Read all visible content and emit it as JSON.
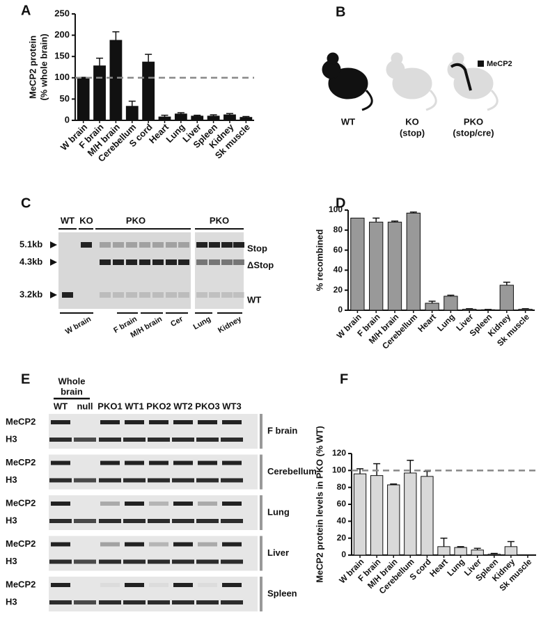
{
  "chart_data": [
    {
      "type": "bar",
      "label": "A",
      "ylabel": [
        "MeCP2 protein",
        "(% whole brain)"
      ],
      "categories": [
        "W brain",
        "F brain",
        "M/H brain",
        "Cerebellum",
        "S cord",
        "Heart",
        "Lung",
        "Liver",
        "Spleen",
        "Kidney",
        "Sk muscle"
      ],
      "values": [
        100,
        128,
        188,
        33,
        137,
        8,
        15,
        10,
        10,
        13,
        7
      ],
      "errors": [
        1,
        18,
        20,
        12,
        18,
        4,
        3,
        2,
        3,
        3,
        2
      ],
      "color": "#111111",
      "ylim": [
        0,
        250
      ],
      "yticks": [
        0,
        50,
        100,
        150,
        200,
        250
      ],
      "reference_line": 100
    },
    {
      "type": "bar",
      "label": "D",
      "ylabel": [
        "% recombined"
      ],
      "categories": [
        "W brain",
        "F brain",
        "M/H brain",
        "Cerebellum",
        "Heart",
        "Lung",
        "Liver",
        "Spleen",
        "Kidney",
        "Sk muscle"
      ],
      "values": [
        92,
        88,
        88,
        97,
        7,
        14,
        1,
        0.5,
        25,
        1
      ],
      "errors": [
        0,
        4,
        1,
        1,
        2,
        1,
        0.5,
        0.3,
        3,
        0.5
      ],
      "color": "#999999",
      "ylim": [
        0,
        100
      ],
      "yticks": [
        0,
        20,
        40,
        60,
        80,
        100
      ]
    },
    {
      "type": "bar",
      "label": "F",
      "ylabel": [
        "MeCP2 protein levels in PKO (% WT)"
      ],
      "categories": [
        "W brain",
        "F brain",
        "M/H brain",
        "Cerebellum",
        "S cord",
        "Heart",
        "Lung",
        "Liver",
        "Spleen",
        "Kidney",
        "Sk muscle"
      ],
      "values": [
        96,
        94,
        83,
        97,
        93,
        10,
        9,
        6,
        1,
        10,
        0
      ],
      "errors": [
        6,
        14,
        1,
        15,
        6,
        10,
        1,
        2,
        1,
        6,
        0
      ],
      "color": "#d9d9d9",
      "ylim": [
        0,
        120
      ],
      "yticks": [
        0,
        20,
        40,
        60,
        80,
        100,
        120
      ],
      "reference_line": 100
    }
  ],
  "panel_b": {
    "label": "B",
    "legend": "MeCP2",
    "mice": [
      {
        "name": "WT"
      },
      {
        "name": "KO",
        "sub": "(stop)"
      },
      {
        "name": "PKO",
        "sub": "(stop/cre)"
      }
    ]
  },
  "panel_c": {
    "label": "C",
    "groups": [
      "WT",
      "KO",
      "PKO",
      "PKO"
    ],
    "sizes": [
      "5.1kb",
      "4.3kb",
      "3.2kb"
    ],
    "bands": [
      "Stop",
      "ΔStop",
      "WT"
    ],
    "tissues": [
      "W brain",
      "F brain",
      "M/H brain",
      "Cer",
      "Lung",
      "Kidney"
    ]
  },
  "panel_e": {
    "label": "E",
    "header": [
      "Whole",
      "brain"
    ],
    "lanes": [
      "WT",
      "null",
      "PKO1",
      "WT1",
      "PKO2",
      "WT2",
      "PKO3",
      "WT3"
    ],
    "rows": [
      "MeCP2",
      "H3"
    ],
    "tissues": [
      "F brain",
      "Cerebellum",
      "Lung",
      "Liver",
      "Spleen"
    ]
  }
}
